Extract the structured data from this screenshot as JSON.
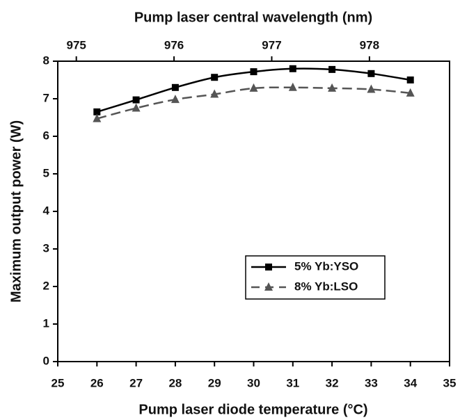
{
  "chart_data": {
    "type": "line",
    "x2label": "Pump laser central wavelength (nm)",
    "xlabel": "Pump laser diode temperature (°C)",
    "ylabel": "Maximum output power (W)",
    "x": [
      26,
      27,
      28,
      29,
      30,
      31,
      32,
      33,
      34
    ],
    "xlim": [
      25,
      35
    ],
    "xticks": [
      25,
      26,
      27,
      28,
      29,
      30,
      31,
      32,
      33,
      34,
      35
    ],
    "x2lim": [
      974.81,
      978.82
    ],
    "x2ticks": [
      975,
      976,
      977,
      978
    ],
    "ylim": [
      0,
      8
    ],
    "yticks": [
      0,
      1,
      2,
      3,
      4,
      5,
      6,
      7,
      8
    ],
    "legend": "lower right",
    "series": [
      {
        "name": "5% Yb:YSO",
        "color": "#000000",
        "marker": "square",
        "dashed": false,
        "values": [
          6.65,
          6.97,
          7.3,
          7.57,
          7.72,
          7.8,
          7.78,
          7.67,
          7.5
        ]
      },
      {
        "name": "8% Yb:LSO",
        "color": "#555555",
        "marker": "triangle",
        "dashed": true,
        "values": [
          6.47,
          6.75,
          6.98,
          7.12,
          7.28,
          7.3,
          7.28,
          7.25,
          7.15
        ]
      }
    ]
  }
}
